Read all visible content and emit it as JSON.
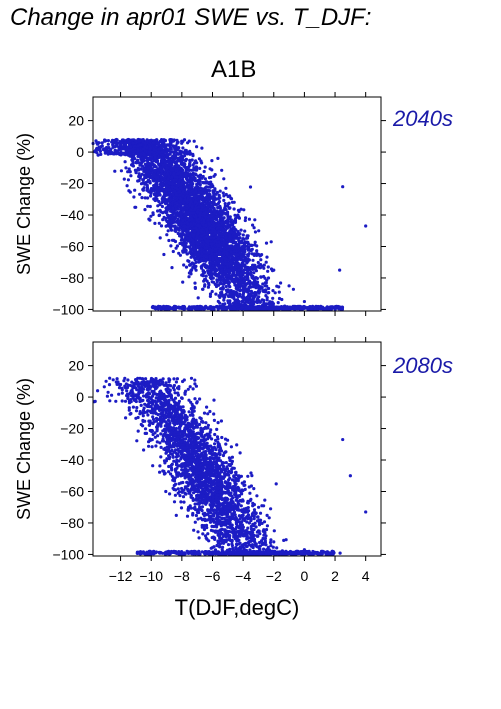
{
  "title": "Change in apr01 SWE vs. T_DJF:",
  "scenario": "A1B",
  "colors": {
    "points": "#1c1cc4",
    "period_label": "#1a1aa8",
    "axis": "#000000"
  },
  "chart_data": [
    {
      "type": "scatter",
      "period": "2040s",
      "xlabel": "T(DJF,degC)",
      "ylabel": "SWE Change (%)",
      "xlim": [
        -13.8,
        5
      ],
      "ylim": [
        -101,
        35
      ],
      "yticks": [
        -100,
        -80,
        -60,
        -40,
        -20,
        0,
        20
      ],
      "xticks": [
        -12,
        -10,
        -8,
        -6,
        -4,
        -2,
        0,
        2,
        4
      ],
      "show_xtick_labels": false,
      "grid": false,
      "description_of_distribution": "dense cloud of ~5000 stations: near 0% at -10 degC falling to -60% to -100% at -3 to 0 degC, with a floor of points at -100%",
      "sample_points": [
        {
          "x": -13.5,
          "y": 5
        },
        {
          "x": -12.5,
          "y": 3
        },
        {
          "x": -11.5,
          "y": 6
        },
        {
          "x": -10.5,
          "y": 2
        },
        {
          "x": -10,
          "y": -5
        },
        {
          "x": -9,
          "y": -10
        },
        {
          "x": -8,
          "y": -20
        },
        {
          "x": -7,
          "y": -28
        },
        {
          "x": -6,
          "y": -35
        },
        {
          "x": -5,
          "y": -45
        },
        {
          "x": -4,
          "y": -55
        },
        {
          "x": -3,
          "y": -65
        },
        {
          "x": -2,
          "y": -75
        },
        {
          "x": -1,
          "y": -85
        },
        {
          "x": 0,
          "y": -95
        },
        {
          "x": 2.5,
          "y": -22
        },
        {
          "x": 4,
          "y": -47
        },
        {
          "x": 2.3,
          "y": -75
        }
      ]
    },
    {
      "type": "scatter",
      "period": "2080s",
      "xlabel": "T(DJF,degC)",
      "ylabel": "SWE Change (%)",
      "xlim": [
        -13.8,
        5
      ],
      "ylim": [
        -101,
        35
      ],
      "yticks": [
        -100,
        -80,
        -60,
        -40,
        -20,
        0,
        20
      ],
      "xticks": [
        -12,
        -10,
        -8,
        -6,
        -4,
        -2,
        0,
        2,
        4
      ],
      "xtick_labels": [
        "−12",
        "−10",
        "−8",
        "−6",
        "−4",
        "−2",
        "0",
        "2",
        "4"
      ],
      "show_xtick_labels": true,
      "grid": false,
      "description_of_distribution": "sparser cloud: near 0% at -10 degC falling steeply to -100% by -4 to 0 degC, with a floor of points at -100%",
      "sample_points": [
        {
          "x": -13.5,
          "y": 4
        },
        {
          "x": -12,
          "y": 8
        },
        {
          "x": -10,
          "y": 10
        },
        {
          "x": -9,
          "y": -5
        },
        {
          "x": -8,
          "y": -25
        },
        {
          "x": -7,
          "y": -40
        },
        {
          "x": -6,
          "y": -55
        },
        {
          "x": -5,
          "y": -65
        },
        {
          "x": -4,
          "y": -75
        },
        {
          "x": -3,
          "y": -85
        },
        {
          "x": -2,
          "y": -92
        },
        {
          "x": 0,
          "y": -97
        },
        {
          "x": 2.5,
          "y": -27
        },
        {
          "x": 3,
          "y": -50
        },
        {
          "x": 4,
          "y": -73
        }
      ]
    }
  ]
}
